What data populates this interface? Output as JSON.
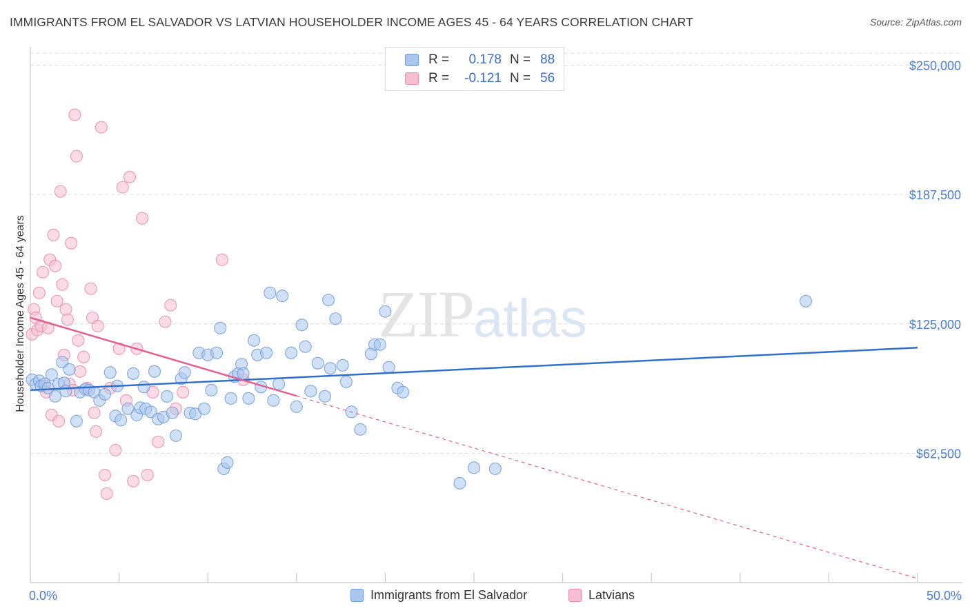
{
  "title": "IMMIGRANTS FROM EL SALVADOR VS LATVIAN HOUSEHOLDER INCOME AGES 45 - 64 YEARS CORRELATION CHART",
  "source": "Source: ZipAtlas.com",
  "watermark": {
    "zip": "ZIP",
    "atlas": "atlas"
  },
  "legend": {
    "rows": [
      {
        "r_label": "R =",
        "r_value": "0.178",
        "n_label": "N =",
        "n_value": "88"
      },
      {
        "r_label": "R =",
        "r_value": "-0.121",
        "n_label": "N =",
        "n_value": "56"
      }
    ]
  },
  "bottom_legend": [
    "Immigrants from El Salvador",
    "Latvians"
  ],
  "chart_data": {
    "type": "scatter",
    "xlabel": "",
    "ylabel": "Householder Income Ages 45 - 64 years",
    "xlim": [
      0,
      50
    ],
    "ylim": [
      0,
      262500
    ],
    "x_tick_labels": [
      "0.0%",
      "50.0%"
    ],
    "y_ticks": [
      62500,
      125000,
      187500,
      250000
    ],
    "y_tick_labels": [
      "$62,500",
      "$125,000",
      "$187,500",
      "$250,000"
    ],
    "grid": true,
    "colors": {
      "blue_fill": "#a9c7ee",
      "blue_stroke": "#6f9ad6",
      "blue_line": "#2f6fcf",
      "pink_fill": "#f7bdd0",
      "pink_stroke": "#e98aac",
      "pink_line": "#e0608f"
    },
    "series": [
      {
        "name": "Immigrants from El Salvador",
        "color": "blue",
        "trend": {
          "x0": 0,
          "y0": 93000,
          "x1": 50,
          "y1": 113500,
          "solid_to": 50
        },
        "points": [
          [
            0.1,
            98000
          ],
          [
            0.3,
            96000
          ],
          [
            0.5,
            97500
          ],
          [
            0.6,
            95000
          ],
          [
            0.8,
            96000
          ],
          [
            1.0,
            94000
          ],
          [
            1.2,
            100500
          ],
          [
            1.4,
            90000
          ],
          [
            1.6,
            96000
          ],
          [
            1.8,
            106500
          ],
          [
            1.9,
            96500
          ],
          [
            2.0,
            92500
          ],
          [
            2.2,
            103000
          ],
          [
            2.6,
            78000
          ],
          [
            2.8,
            92000
          ],
          [
            3.1,
            93500
          ],
          [
            3.3,
            93000
          ],
          [
            3.6,
            92000
          ],
          [
            3.9,
            88000
          ],
          [
            4.2,
            91000
          ],
          [
            4.5,
            101500
          ],
          [
            4.8,
            80500
          ],
          [
            4.9,
            95000
          ],
          [
            5.1,
            78500
          ],
          [
            5.5,
            84000
          ],
          [
            5.8,
            101000
          ],
          [
            6.0,
            81000
          ],
          [
            6.2,
            84500
          ],
          [
            6.4,
            94500
          ],
          [
            6.5,
            84000
          ],
          [
            6.8,
            82500
          ],
          [
            7.0,
            102000
          ],
          [
            7.2,
            79000
          ],
          [
            7.5,
            80000
          ],
          [
            7.7,
            90000
          ],
          [
            8.0,
            82000
          ],
          [
            8.2,
            71000
          ],
          [
            8.5,
            98500
          ],
          [
            8.7,
            101500
          ],
          [
            9.0,
            82000
          ],
          [
            9.3,
            81500
          ],
          [
            9.5,
            111000
          ],
          [
            9.8,
            84000
          ],
          [
            10.0,
            110000
          ],
          [
            10.2,
            93000
          ],
          [
            10.5,
            111000
          ],
          [
            10.7,
            123000
          ],
          [
            10.9,
            55000
          ],
          [
            11.1,
            58000
          ],
          [
            11.3,
            89000
          ],
          [
            11.5,
            99500
          ],
          [
            11.7,
            101000
          ],
          [
            11.9,
            105500
          ],
          [
            12.0,
            101000
          ],
          [
            12.3,
            89000
          ],
          [
            12.6,
            117000
          ],
          [
            12.8,
            110000
          ],
          [
            13.0,
            94500
          ],
          [
            13.3,
            111000
          ],
          [
            13.5,
            140000
          ],
          [
            13.7,
            88000
          ],
          [
            14.0,
            96000
          ],
          [
            14.2,
            138500
          ],
          [
            14.7,
            111000
          ],
          [
            15.0,
            85000
          ],
          [
            15.3,
            124500
          ],
          [
            15.5,
            114000
          ],
          [
            15.8,
            92500
          ],
          [
            16.2,
            106000
          ],
          [
            16.6,
            90000
          ],
          [
            16.8,
            136500
          ],
          [
            16.9,
            103500
          ],
          [
            17.2,
            127500
          ],
          [
            17.6,
            105000
          ],
          [
            17.8,
            97000
          ],
          [
            18.1,
            82500
          ],
          [
            18.6,
            74000
          ],
          [
            19.2,
            110500
          ],
          [
            19.4,
            115000
          ],
          [
            19.7,
            115000
          ],
          [
            20.0,
            131000
          ],
          [
            20.2,
            104000
          ],
          [
            20.7,
            94000
          ],
          [
            21.0,
            92000
          ],
          [
            24.2,
            48000
          ],
          [
            25.0,
            55500
          ],
          [
            26.2,
            55000
          ],
          [
            43.7,
            136000
          ]
        ]
      },
      {
        "name": "Latvians",
        "color": "pink",
        "trend": {
          "x0": 0,
          "y0": 128000,
          "x1": 50,
          "y1": 2000,
          "solid_to": 15
        },
        "points": [
          [
            0.1,
            120000
          ],
          [
            0.2,
            132000
          ],
          [
            0.3,
            128000
          ],
          [
            0.4,
            122000
          ],
          [
            0.5,
            140000
          ],
          [
            0.6,
            124000
          ],
          [
            0.7,
            150000
          ],
          [
            0.8,
            95000
          ],
          [
            0.9,
            92000
          ],
          [
            1.0,
            123000
          ],
          [
            1.1,
            156000
          ],
          [
            1.2,
            81000
          ],
          [
            1.3,
            168000
          ],
          [
            1.4,
            153000
          ],
          [
            1.5,
            136000
          ],
          [
            1.6,
            78000
          ],
          [
            1.7,
            189000
          ],
          [
            1.8,
            144000
          ],
          [
            1.9,
            110000
          ],
          [
            2.0,
            132000
          ],
          [
            2.1,
            127000
          ],
          [
            2.2,
            96000
          ],
          [
            2.3,
            164000
          ],
          [
            2.4,
            93000
          ],
          [
            2.5,
            226000
          ],
          [
            2.6,
            206000
          ],
          [
            2.7,
            117000
          ],
          [
            2.8,
            102000
          ],
          [
            3.0,
            109000
          ],
          [
            3.2,
            94000
          ],
          [
            3.4,
            142000
          ],
          [
            3.5,
            128000
          ],
          [
            3.6,
            82000
          ],
          [
            3.7,
            73000
          ],
          [
            3.8,
            124000
          ],
          [
            4.0,
            220000
          ],
          [
            4.2,
            52000
          ],
          [
            4.3,
            43000
          ],
          [
            4.5,
            94000
          ],
          [
            4.8,
            64000
          ],
          [
            5.0,
            113000
          ],
          [
            5.2,
            191000
          ],
          [
            5.4,
            88000
          ],
          [
            5.6,
            196000
          ],
          [
            5.8,
            49000
          ],
          [
            6.0,
            113000
          ],
          [
            6.3,
            176000
          ],
          [
            6.6,
            52000
          ],
          [
            6.9,
            92000
          ],
          [
            7.2,
            68000
          ],
          [
            7.6,
            126000
          ],
          [
            7.9,
            134000
          ],
          [
            8.2,
            84000
          ],
          [
            8.6,
            92000
          ],
          [
            10.8,
            156000
          ],
          [
            12.0,
            98000
          ]
        ]
      }
    ]
  }
}
